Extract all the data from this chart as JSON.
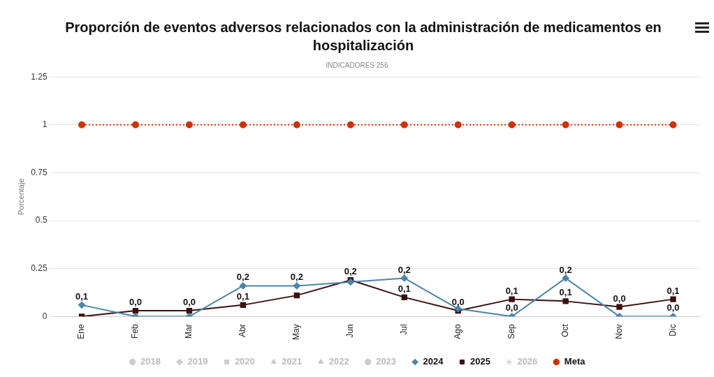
{
  "chart_data": {
    "type": "line",
    "title": "Proporción de eventos adversos relacionados con la administración de medicamentos en hospitalización",
    "subtitle": "INDICADORES 256",
    "ylabel": "Porcentaje",
    "categories": [
      "Ene",
      "Feb",
      "Mar",
      "Abr",
      "May",
      "Jun",
      "Jul",
      "Ago",
      "Sep",
      "Oct",
      "Nov",
      "Dic"
    ],
    "ylim": [
      0,
      1.25
    ],
    "yticks": [
      0,
      0.25,
      0.5,
      0.75,
      1,
      1.25
    ],
    "grid": "y",
    "legend": "bottom",
    "series": [
      {
        "name": "2018",
        "color": "#cccccc",
        "marker": "circle",
        "values": [
          null,
          null,
          null,
          null,
          null,
          null,
          null,
          null,
          null,
          null,
          null,
          null
        ]
      },
      {
        "name": "2019",
        "color": "#cccccc",
        "marker": "diamond",
        "values": [
          null,
          null,
          null,
          null,
          null,
          null,
          null,
          null,
          null,
          null,
          null,
          null
        ]
      },
      {
        "name": "2020",
        "color": "#cccccc",
        "marker": "square",
        "values": [
          null,
          null,
          null,
          null,
          null,
          null,
          null,
          null,
          null,
          null,
          null,
          null
        ]
      },
      {
        "name": "2021",
        "color": "#cccccc",
        "marker": "triangle",
        "values": [
          null,
          null,
          null,
          null,
          null,
          null,
          null,
          null,
          null,
          null,
          null,
          null
        ]
      },
      {
        "name": "2022",
        "color": "#cccccc",
        "marker": "triangle",
        "values": [
          null,
          null,
          null,
          null,
          null,
          null,
          null,
          null,
          null,
          null,
          null,
          null
        ]
      },
      {
        "name": "2023",
        "color": "#cccccc",
        "marker": "circle",
        "values": [
          null,
          null,
          null,
          null,
          null,
          null,
          null,
          null,
          null,
          null,
          null,
          null
        ]
      },
      {
        "name": "2024",
        "color": "#4a86a8",
        "marker": "diamond",
        "values": [
          0.06,
          0,
          0,
          0.16,
          0.16,
          0.18,
          0.2,
          0.04,
          0,
          0.2,
          0,
          0
        ],
        "value_labels": [
          "0,1",
          null,
          null,
          "0,2",
          "0,2",
          null,
          "0,2",
          null,
          "0,0",
          "0,2",
          null,
          "0,0"
        ]
      },
      {
        "name": "2025",
        "color": "#3a1010",
        "marker": "square",
        "values": [
          0,
          0.03,
          0.03,
          0.06,
          0.11,
          0.19,
          0.1,
          0.03,
          0.09,
          0.08,
          0.05,
          0.09
        ],
        "value_labels": [
          null,
          "0,0",
          "0,0",
          "0,1",
          null,
          "0,2",
          "0,1",
          "0,0",
          "0,1",
          "0,1",
          "0,0",
          "0,1"
        ]
      },
      {
        "name": "2026",
        "color": "#cccccc",
        "marker": "star",
        "values": [
          null,
          null,
          null,
          null,
          null,
          null,
          null,
          null,
          null,
          null,
          null,
          null
        ]
      },
      {
        "name": "Meta",
        "color": "#cc3300",
        "marker": "circle",
        "line_style": "dotted",
        "values": [
          1,
          1,
          1,
          1,
          1,
          1,
          1,
          1,
          1,
          1,
          1,
          1
        ]
      }
    ]
  }
}
